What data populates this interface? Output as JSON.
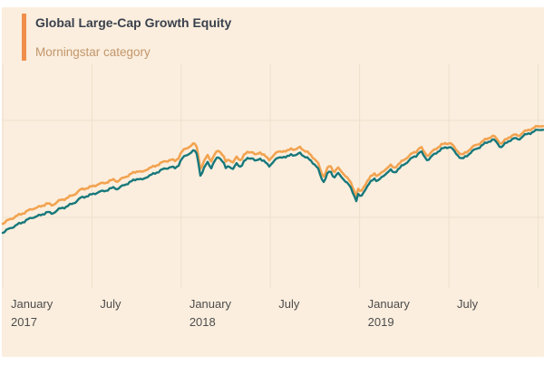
{
  "header": {
    "title": "Global Large-Cap Growth Equity",
    "subtitle": "Morningstar category",
    "accent_color": "#EF8F4B"
  },
  "colors": {
    "page_bg": "#FFFFFF",
    "panel_bg": "#FBEEDE",
    "gridline": "#EDE0CD",
    "axis_label": "#4D4D4D",
    "title_text": "#3A414D",
    "subtitle_text": "#C2966B",
    "category_line": "#F2A351",
    "fund_line": "#17787B"
  },
  "x_axis": {
    "ticks": [
      {
        "month": 0,
        "line1": "January",
        "line2": "2017"
      },
      {
        "month": 6,
        "line1": "July",
        "line2": ""
      },
      {
        "month": 12,
        "line1": "January",
        "line2": "2018"
      },
      {
        "month": 18,
        "line1": "July",
        "line2": ""
      },
      {
        "month": 24,
        "line1": "January",
        "line2": "2019"
      },
      {
        "month": 30,
        "line1": "July",
        "line2": ""
      }
    ]
  },
  "chart_data": {
    "type": "line",
    "title": "Global Large-Cap Growth Equity",
    "subtitle": "Morningstar category",
    "xlabel": "",
    "ylabel": "",
    "x_unit": "months since January 2017",
    "xlim": [
      0,
      36.4
    ],
    "ylim": [
      85,
      147
    ],
    "grid": true,
    "x_gridline_months": [
      0,
      6,
      12,
      18,
      24,
      30,
      36
    ],
    "y_gridline_values": [
      104.5,
      131.25
    ],
    "legend_position": "top-left",
    "y_axis_labels_visible": false,
    "months": [
      0,
      0.5,
      1,
      1.5,
      2,
      2.5,
      3,
      3.3,
      3.8,
      4.3,
      4.8,
      5.3,
      5.8,
      6.1,
      6.5,
      7,
      7.5,
      7.7,
      8.2,
      8.7,
      9.1,
      9.4,
      9.8,
      10.2,
      10.6,
      11,
      11.3,
      11.6,
      11.8,
      12,
      12.3,
      12.6,
      12.9,
      13.1,
      13.3,
      13.6,
      13.8,
      14,
      14.3,
      14.5,
      14.8,
      15,
      15.2,
      15.5,
      15.7,
      16,
      16.2,
      16.5,
      16.8,
      17,
      17.3,
      17.6,
      17.9,
      18.2,
      18.5,
      18.8,
      19.1,
      19.4,
      19.7,
      20,
      20.3,
      20.6,
      20.9,
      21.2,
      21.4,
      21.6,
      21.8,
      22,
      22.3,
      22.5,
      22.8,
      23,
      23.3,
      23.5,
      23.8,
      23.9,
      24.1,
      24.3,
      24.5,
      24.8,
      25,
      25.2,
      25.5,
      25.8,
      26.1,
      26.3,
      26.6,
      26.9,
      27.2,
      27.5,
      27.8,
      28.1,
      28.4,
      28.6,
      28.9,
      29.2,
      29.5,
      29.8,
      30.1,
      30.4,
      30.7,
      30.9,
      31.2,
      31.5,
      31.8,
      32.1,
      32.4,
      32.7,
      33,
      33.3,
      33.5,
      33.8,
      34.1,
      34.4,
      34.7,
      35,
      35.3,
      35.6,
      35.9,
      36.2,
      36.4
    ],
    "series": [
      {
        "name": "Global Large-Cap Growth Equity (Morningstar category)",
        "color": "#F2A351",
        "values": [
          102.8,
          104,
          105,
          105.9,
          106.9,
          107.4,
          108.4,
          107.8,
          109.1,
          109.8,
          110.8,
          112.3,
          112.7,
          113.2,
          113.7,
          114.2,
          115,
          114.4,
          115.6,
          116.6,
          117.4,
          116.9,
          118.1,
          118.5,
          119.5,
          120,
          120.5,
          120,
          120.8,
          122.5,
          123.4,
          124.2,
          124.9,
          123.4,
          117.7,
          120.4,
          121.9,
          119.9,
          122.1,
          123.1,
          121.8,
          119.8,
          120.6,
          119.6,
          121.1,
          120.3,
          121.6,
          122.5,
          122.7,
          121.5,
          122.5,
          121.7,
          120.2,
          121.7,
          122.5,
          122.9,
          122.6,
          123.6,
          123.1,
          123.9,
          122.9,
          122.1,
          121,
          119.5,
          117,
          115.8,
          117.8,
          118.8,
          117,
          118.3,
          117,
          116.3,
          114.7,
          113.2,
          110.4,
          112.2,
          111.4,
          113.2,
          114.4,
          115.9,
          116.7,
          115.9,
          116.8,
          118.1,
          118.8,
          118.1,
          119.1,
          120.1,
          121.1,
          122,
          122.7,
          124,
          122.2,
          121.5,
          122.7,
          123.7,
          124.5,
          124.9,
          125.1,
          123.6,
          122.4,
          121.6,
          122.6,
          123.6,
          124.4,
          125,
          125.8,
          126.5,
          127,
          125.8,
          124.8,
          125.8,
          126.8,
          127.3,
          127,
          128,
          128.5,
          129,
          129.5,
          129.8,
          129.8
        ]
      },
      {
        "name": "(unlabeled teal series)",
        "color": "#17787B",
        "values": [
          100.3,
          101.5,
          102.5,
          103.5,
          104.5,
          105,
          106,
          105.5,
          106.8,
          107.5,
          108.5,
          110,
          110.5,
          111,
          111.5,
          112,
          112.8,
          112.3,
          113.5,
          114.5,
          115.3,
          114.8,
          116,
          116.5,
          117.5,
          118,
          118.5,
          118,
          118.8,
          120.5,
          121.5,
          122.3,
          123,
          121.5,
          115.8,
          118.5,
          120,
          118,
          120.3,
          121.3,
          120,
          118,
          118.8,
          117.8,
          119.3,
          118.5,
          119.8,
          120.8,
          121,
          119.8,
          120.8,
          120,
          118.5,
          120,
          120.8,
          121.3,
          121,
          122,
          121.5,
          122.3,
          121.3,
          120.5,
          119.5,
          118,
          115.5,
          114.3,
          116.3,
          117.3,
          115.5,
          116.8,
          115.5,
          114.8,
          113.3,
          111.8,
          109,
          110.8,
          110,
          111.8,
          113,
          114.5,
          115.3,
          114.5,
          115.5,
          116.8,
          117.5,
          116.8,
          117.8,
          118.8,
          119.8,
          120.8,
          121.5,
          122.8,
          121,
          120.3,
          121.5,
          122.5,
          123.3,
          123.8,
          124,
          122.5,
          121.3,
          120.5,
          121.5,
          122.5,
          123.3,
          124,
          124.8,
          125.5,
          126,
          124.8,
          123.8,
          124.8,
          125.8,
          126.3,
          126,
          127,
          127.5,
          128,
          128.5,
          128.8,
          128.8
        ]
      }
    ]
  }
}
